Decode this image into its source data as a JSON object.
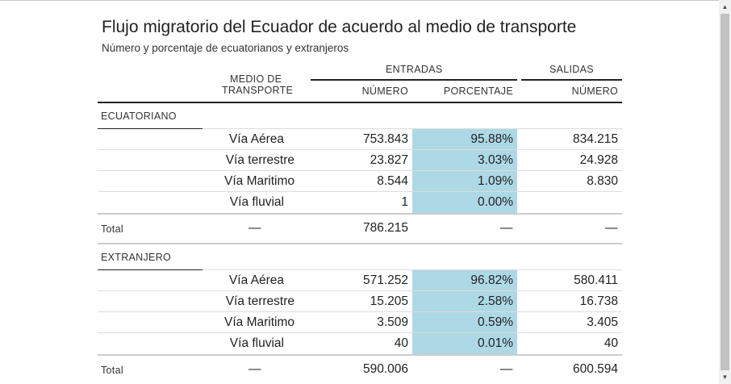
{
  "title": "Flujo migratorio del Ecuador de acuerdo al medio de transporte",
  "subtitle": "Número y porcentaje de ecuatorianos y extranjeros",
  "header": {
    "medio_line1": "MEDIO DE",
    "medio_line2": "TRANSPORTE",
    "entradas": "ENTRADAS",
    "salidas": "SALIDAS",
    "numero_entradas": "NÚMERO",
    "porcentaje": "PORCENTAJE",
    "numero_salidas": "NÚMERO"
  },
  "colors": {
    "percentage_highlight": "#add8e6"
  },
  "groups": [
    {
      "label": "ECUATORIANO",
      "rows": [
        {
          "medio": "Vía Aérea",
          "entradas": "753.843",
          "porcentaje": "95.88%",
          "salidas": "834.215"
        },
        {
          "medio": "Vía terrestre",
          "entradas": "23.827",
          "porcentaje": "3.03%",
          "salidas": "24.928"
        },
        {
          "medio": "Vía Maritimo",
          "entradas": "8.544",
          "porcentaje": "1.09%",
          "salidas": "8.830"
        },
        {
          "medio": "Vía fluvial",
          "entradas": "1",
          "porcentaje": "0.00%",
          "salidas": ""
        }
      ],
      "total": {
        "label": "Total",
        "medio": "—",
        "entradas": "786.215",
        "porcentaje": "—",
        "salidas": "—"
      }
    },
    {
      "label": "EXTRANJERO",
      "rows": [
        {
          "medio": "Vía Aérea",
          "entradas": "571.252",
          "porcentaje": "96.82%",
          "salidas": "580.411"
        },
        {
          "medio": "Vía terrestre",
          "entradas": "15.205",
          "porcentaje": "2.58%",
          "salidas": "16.738"
        },
        {
          "medio": "Vía Maritimo",
          "entradas": "3.509",
          "porcentaje": "0.59%",
          "salidas": "3.405"
        },
        {
          "medio": "Vía fluvial",
          "entradas": "40",
          "porcentaje": "0.01%",
          "salidas": "40"
        }
      ],
      "total": {
        "label": "Total",
        "medio": "—",
        "entradas": "590.006",
        "porcentaje": "—",
        "salidas": "600.594"
      }
    }
  ]
}
